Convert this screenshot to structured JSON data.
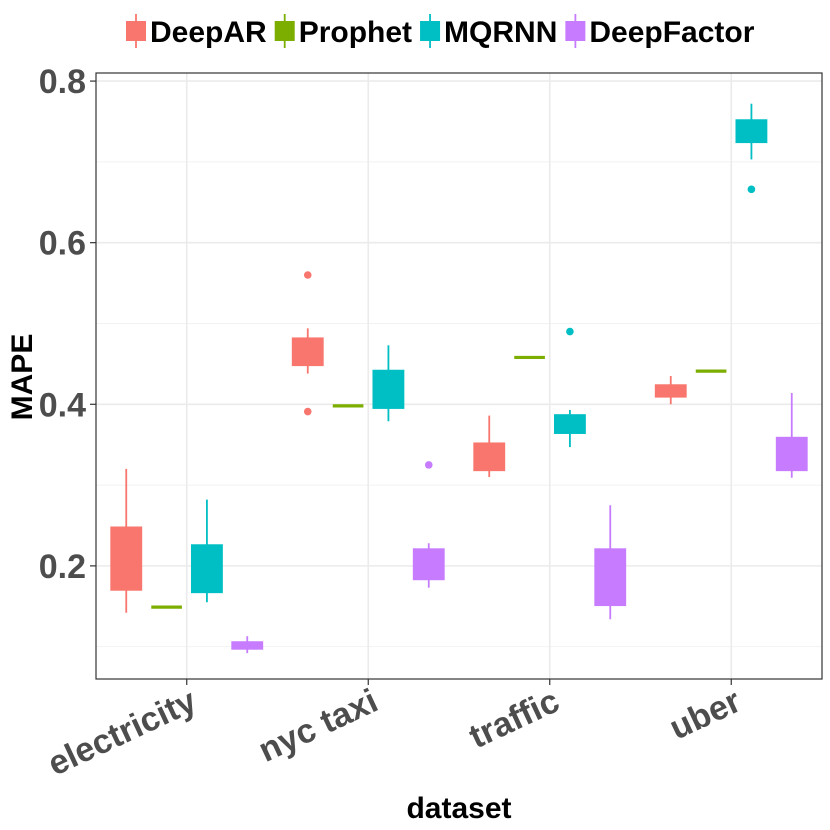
{
  "chart_data": {
    "type": "boxplot",
    "title": "",
    "xlabel": "dataset",
    "ylabel": "MAPE",
    "categories": [
      "electricity",
      "nyc taxi",
      "traffic",
      "uber"
    ],
    "ylim": [
      0.06,
      0.81
    ],
    "y_ticks": [
      0.2,
      0.4,
      0.6,
      0.8
    ],
    "y_tick_labels": [
      "0.2",
      "0.4",
      "0.6",
      "0.8"
    ],
    "grid": true,
    "legend_position": "top",
    "series": [
      {
        "name": "DeepAR",
        "color": "#F8766D",
        "boxes": [
          {
            "category": "electricity",
            "whisker_low": 0.142,
            "q1": 0.17,
            "median": 0.19,
            "q3": 0.248,
            "whisker_high": 0.32,
            "outliers": []
          },
          {
            "category": "nyc taxi",
            "whisker_low": 0.438,
            "q1": 0.448,
            "median": 0.46,
            "q3": 0.482,
            "whisker_high": 0.494,
            "outliers": [
              0.56,
              0.391
            ]
          },
          {
            "category": "traffic",
            "whisker_low": 0.31,
            "q1": 0.318,
            "median": 0.33,
            "q3": 0.352,
            "whisker_high": 0.386,
            "outliers": []
          },
          {
            "category": "uber",
            "whisker_low": 0.4,
            "q1": 0.409,
            "median": 0.415,
            "q3": 0.424,
            "whisker_high": 0.435,
            "outliers": []
          }
        ]
      },
      {
        "name": "Prophet",
        "color": "#7CAE00",
        "boxes": [
          {
            "category": "electricity",
            "whisker_low": 0.149,
            "q1": 0.149,
            "median": 0.149,
            "q3": 0.149,
            "whisker_high": 0.149,
            "outliers": []
          },
          {
            "category": "nyc taxi",
            "whisker_low": 0.398,
            "q1": 0.398,
            "median": 0.398,
            "q3": 0.398,
            "whisker_high": 0.398,
            "outliers": []
          },
          {
            "category": "traffic",
            "whisker_low": 0.458,
            "q1": 0.458,
            "median": 0.458,
            "q3": 0.458,
            "whisker_high": 0.458,
            "outliers": []
          },
          {
            "category": "uber",
            "whisker_low": 0.441,
            "q1": 0.441,
            "median": 0.441,
            "q3": 0.441,
            "whisker_high": 0.441,
            "outliers": []
          }
        ]
      },
      {
        "name": "MQRNN",
        "color": "#00BFC4",
        "boxes": [
          {
            "category": "electricity",
            "whisker_low": 0.155,
            "q1": 0.167,
            "median": 0.19,
            "q3": 0.226,
            "whisker_high": 0.282,
            "outliers": []
          },
          {
            "category": "nyc taxi",
            "whisker_low": 0.379,
            "q1": 0.395,
            "median": 0.41,
            "q3": 0.442,
            "whisker_high": 0.473,
            "outliers": []
          },
          {
            "category": "traffic",
            "whisker_low": 0.347,
            "q1": 0.364,
            "median": 0.374,
            "q3": 0.387,
            "whisker_high": 0.393,
            "outliers": [
              0.49
            ]
          },
          {
            "category": "uber",
            "whisker_low": 0.703,
            "q1": 0.724,
            "median": 0.735,
            "q3": 0.752,
            "whisker_high": 0.772,
            "outliers": [
              0.666
            ]
          }
        ]
      },
      {
        "name": "DeepFactor",
        "color": "#C77CFF",
        "boxes": [
          {
            "category": "electricity",
            "whisker_low": 0.092,
            "q1": 0.097,
            "median": 0.101,
            "q3": 0.106,
            "whisker_high": 0.113,
            "outliers": []
          },
          {
            "category": "nyc taxi",
            "whisker_low": 0.173,
            "q1": 0.183,
            "median": 0.2,
            "q3": 0.221,
            "whisker_high": 0.228,
            "outliers": [
              0.325
            ]
          },
          {
            "category": "traffic",
            "whisker_low": 0.134,
            "q1": 0.151,
            "median": 0.18,
            "q3": 0.221,
            "whisker_high": 0.275,
            "outliers": []
          },
          {
            "category": "uber",
            "whisker_low": 0.309,
            "q1": 0.318,
            "median": 0.33,
            "q3": 0.359,
            "whisker_high": 0.414,
            "outliers": []
          }
        ]
      }
    ]
  }
}
